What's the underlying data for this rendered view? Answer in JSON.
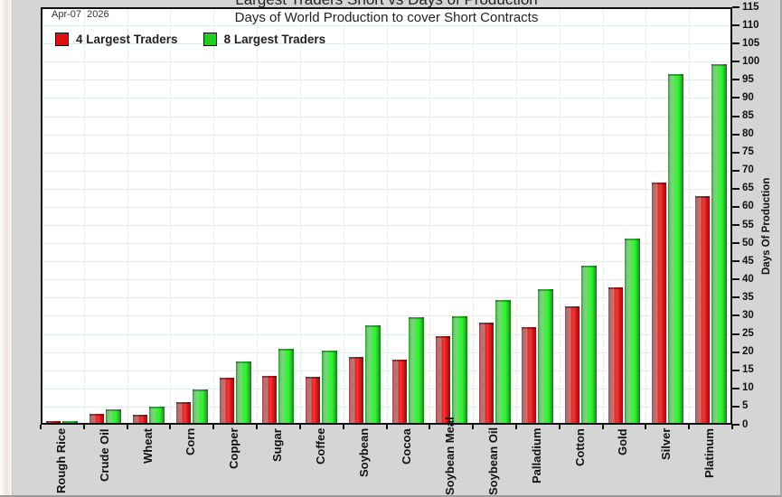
{
  "chart_data": {
    "type": "bar",
    "title": "Largest Traders Short vs Days of Production",
    "subtitle": "Days of World Production to cover Short Contracts",
    "annotation": "Apr-07  2026",
    "categories": [
      "Rough Rice",
      "Crude Oil",
      "Wheat",
      "Corn",
      "Copper",
      "Sugar",
      "Coffee",
      "Soybean",
      "Cocoa",
      "Soybean Meal",
      "Soybean Oil",
      "Palladium",
      "Cotton",
      "Gold",
      "Silver",
      "Platinum"
    ],
    "series": [
      {
        "name": "4 Largest Traders",
        "color": "#dd1111",
        "values": [
          0.4,
          2.5,
          2.2,
          5.7,
          12.4,
          13.0,
          12.7,
          18.2,
          17.4,
          23.9,
          27.6,
          26.4,
          32.1,
          37.3,
          66.2,
          62.5
        ]
      },
      {
        "name": "8 Largest Traders",
        "color": "#22cc22",
        "values": [
          0.4,
          3.7,
          4.4,
          9.2,
          16.9,
          20.4,
          19.9,
          26.9,
          29.1,
          29.4,
          33.8,
          36.8,
          43.3,
          50.7,
          96.2,
          98.8
        ]
      }
    ],
    "xlabel": "",
    "ylabel": "Days Of Production",
    "ylim": [
      0,
      115
    ],
    "ytick_step": 5,
    "grid": true,
    "legend_position": "top-left",
    "colors": {
      "grid": "#e3e9f1",
      "plot_background": "#ffffff",
      "page_background": "#d5d5d5",
      "frame": "#101010"
    }
  }
}
